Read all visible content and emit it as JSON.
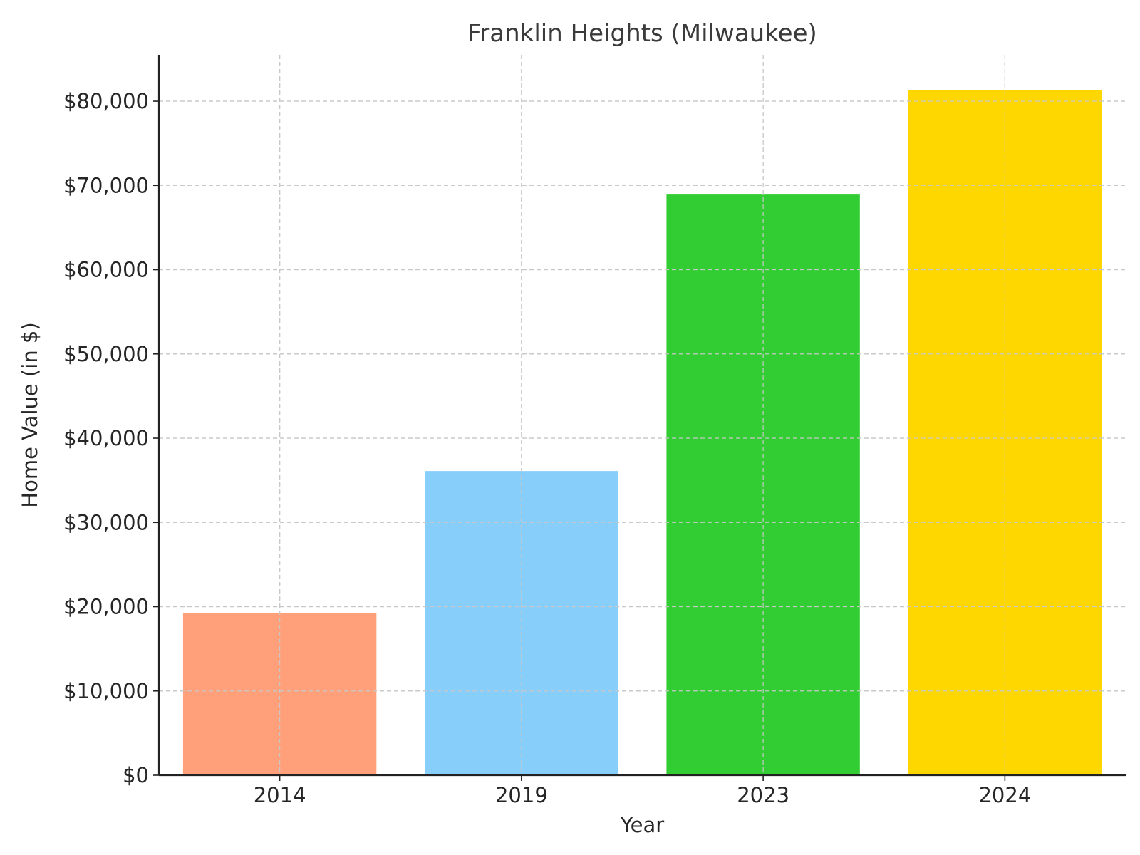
{
  "chart_data": {
    "type": "bar",
    "title": "Franklin Heights (Milwaukee)",
    "xlabel": "Year",
    "ylabel": "Home Value (in $)",
    "categories": [
      "2014",
      "2019",
      "2023",
      "2024"
    ],
    "values": [
      19200,
      36100,
      69000,
      81300
    ],
    "colors": [
      "#FFA07A",
      "#87CEFA",
      "#32CD32",
      "#FFD700"
    ],
    "ylim": [
      0,
      85500
    ],
    "yticks": [
      0,
      10000,
      20000,
      30000,
      40000,
      50000,
      60000,
      70000,
      80000
    ],
    "ytick_labels": [
      "$0",
      "$10,000",
      "$20,000",
      "$30,000",
      "$40,000",
      "$50,000",
      "$60,000",
      "$70,000",
      "$80,000"
    ],
    "grid": true
  }
}
